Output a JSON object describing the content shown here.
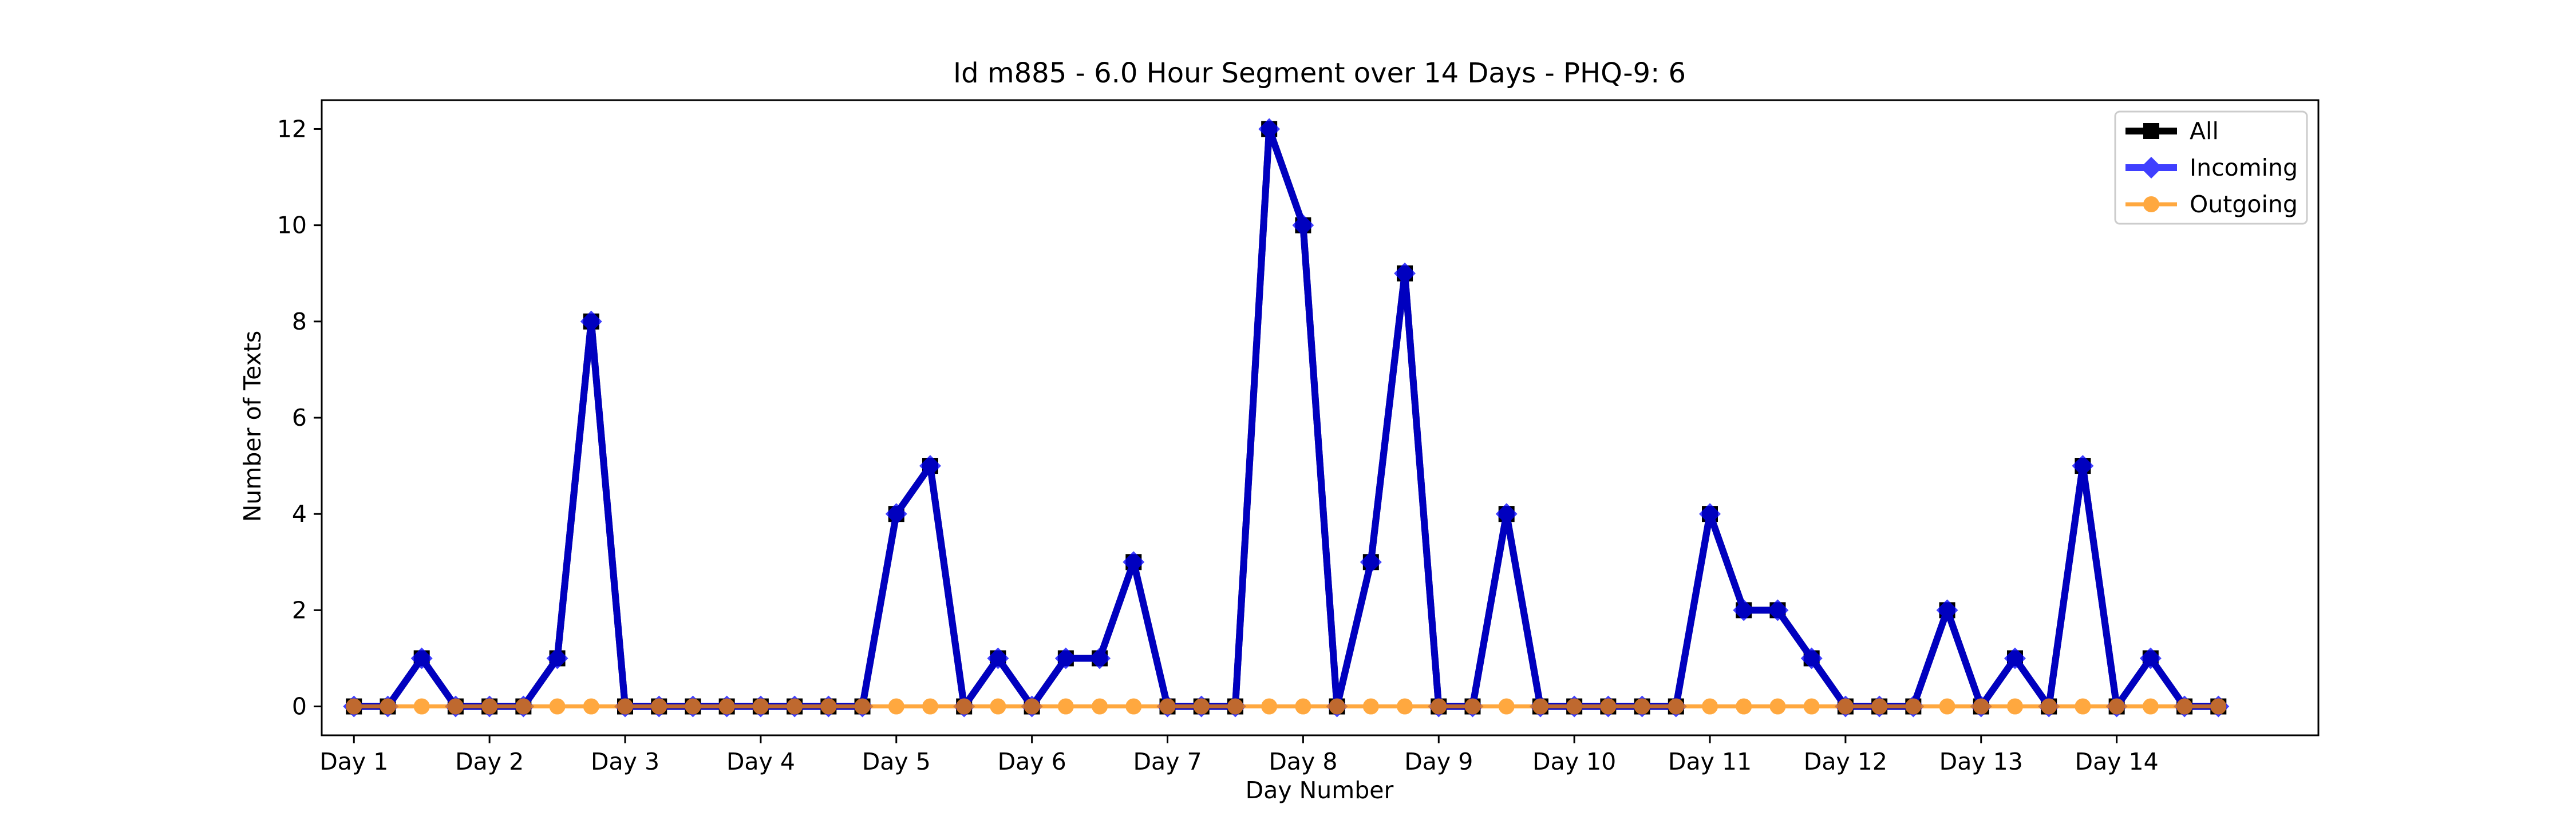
{
  "chart_data": {
    "type": "line",
    "title": "Id m885 - 6.0 Hour Segment over 14 Days - PHQ-9: 6",
    "xlabel": "Day Number",
    "ylabel": "Number of Texts",
    "xlim": [
      -0.95,
      57.95
    ],
    "ylim": [
      -0.6,
      12.6
    ],
    "x_ticks": [
      {
        "pos": 0,
        "label": "Day 1"
      },
      {
        "pos": 4,
        "label": "Day 2"
      },
      {
        "pos": 8,
        "label": "Day 3"
      },
      {
        "pos": 12,
        "label": "Day 4"
      },
      {
        "pos": 16,
        "label": "Day 5"
      },
      {
        "pos": 20,
        "label": "Day 6"
      },
      {
        "pos": 24,
        "label": "Day 7"
      },
      {
        "pos": 28,
        "label": "Day 8"
      },
      {
        "pos": 32,
        "label": "Day 9"
      },
      {
        "pos": 36,
        "label": "Day 10"
      },
      {
        "pos": 40,
        "label": "Day 11"
      },
      {
        "pos": 44,
        "label": "Day 12"
      },
      {
        "pos": 48,
        "label": "Day 13"
      },
      {
        "pos": 52,
        "label": "Day 14"
      }
    ],
    "y_ticks": [
      0,
      2,
      4,
      6,
      8,
      10,
      12
    ],
    "grid": false,
    "legend_position": "top-right",
    "x": [
      0,
      1,
      2,
      3,
      4,
      5,
      6,
      7,
      8,
      9,
      10,
      11,
      12,
      13,
      14,
      15,
      16,
      17,
      18,
      19,
      20,
      21,
      22,
      23,
      24,
      25,
      26,
      27,
      28,
      29,
      30,
      31,
      32,
      33,
      34,
      35,
      36,
      37,
      38,
      39,
      40,
      41,
      42,
      43,
      44,
      45,
      46,
      47,
      48,
      49,
      50,
      51,
      52,
      53,
      54,
      55
    ],
    "series": [
      {
        "name": "All",
        "color": "#000000",
        "marker": "square",
        "values": [
          0,
          0,
          1,
          0,
          0,
          0,
          1,
          8,
          0,
          0,
          0,
          0,
          0,
          0,
          0,
          0,
          4,
          5,
          0,
          1,
          0,
          1,
          1,
          3,
          0,
          0,
          0,
          12,
          10,
          0,
          3,
          9,
          0,
          0,
          4,
          0,
          0,
          0,
          0,
          0,
          4,
          2,
          2,
          1,
          0,
          0,
          0,
          2,
          0,
          1,
          0,
          5,
          0,
          1,
          0,
          0
        ]
      },
      {
        "name": "Incoming",
        "color": "#0000ff",
        "marker": "diamond",
        "values": [
          0,
          0,
          1,
          0,
          0,
          0,
          1,
          8,
          0,
          0,
          0,
          0,
          0,
          0,
          0,
          0,
          4,
          5,
          0,
          1,
          0,
          1,
          1,
          3,
          0,
          0,
          0,
          12,
          10,
          0,
          3,
          9,
          0,
          0,
          4,
          0,
          0,
          0,
          0,
          0,
          4,
          2,
          2,
          1,
          0,
          0,
          0,
          2,
          0,
          1,
          0,
          5,
          0,
          1,
          0,
          0
        ]
      },
      {
        "name": "Outgoing",
        "color": "#ff8c00",
        "marker": "circle",
        "values": [
          0,
          0,
          0,
          0,
          0,
          0,
          0,
          0,
          0,
          0,
          0,
          0,
          0,
          0,
          0,
          0,
          0,
          0,
          0,
          0,
          0,
          0,
          0,
          0,
          0,
          0,
          0,
          0,
          0,
          0,
          0,
          0,
          0,
          0,
          0,
          0,
          0,
          0,
          0,
          0,
          0,
          0,
          0,
          0,
          0,
          0,
          0,
          0,
          0,
          0,
          0,
          0,
          0,
          0,
          0,
          0
        ]
      }
    ]
  }
}
